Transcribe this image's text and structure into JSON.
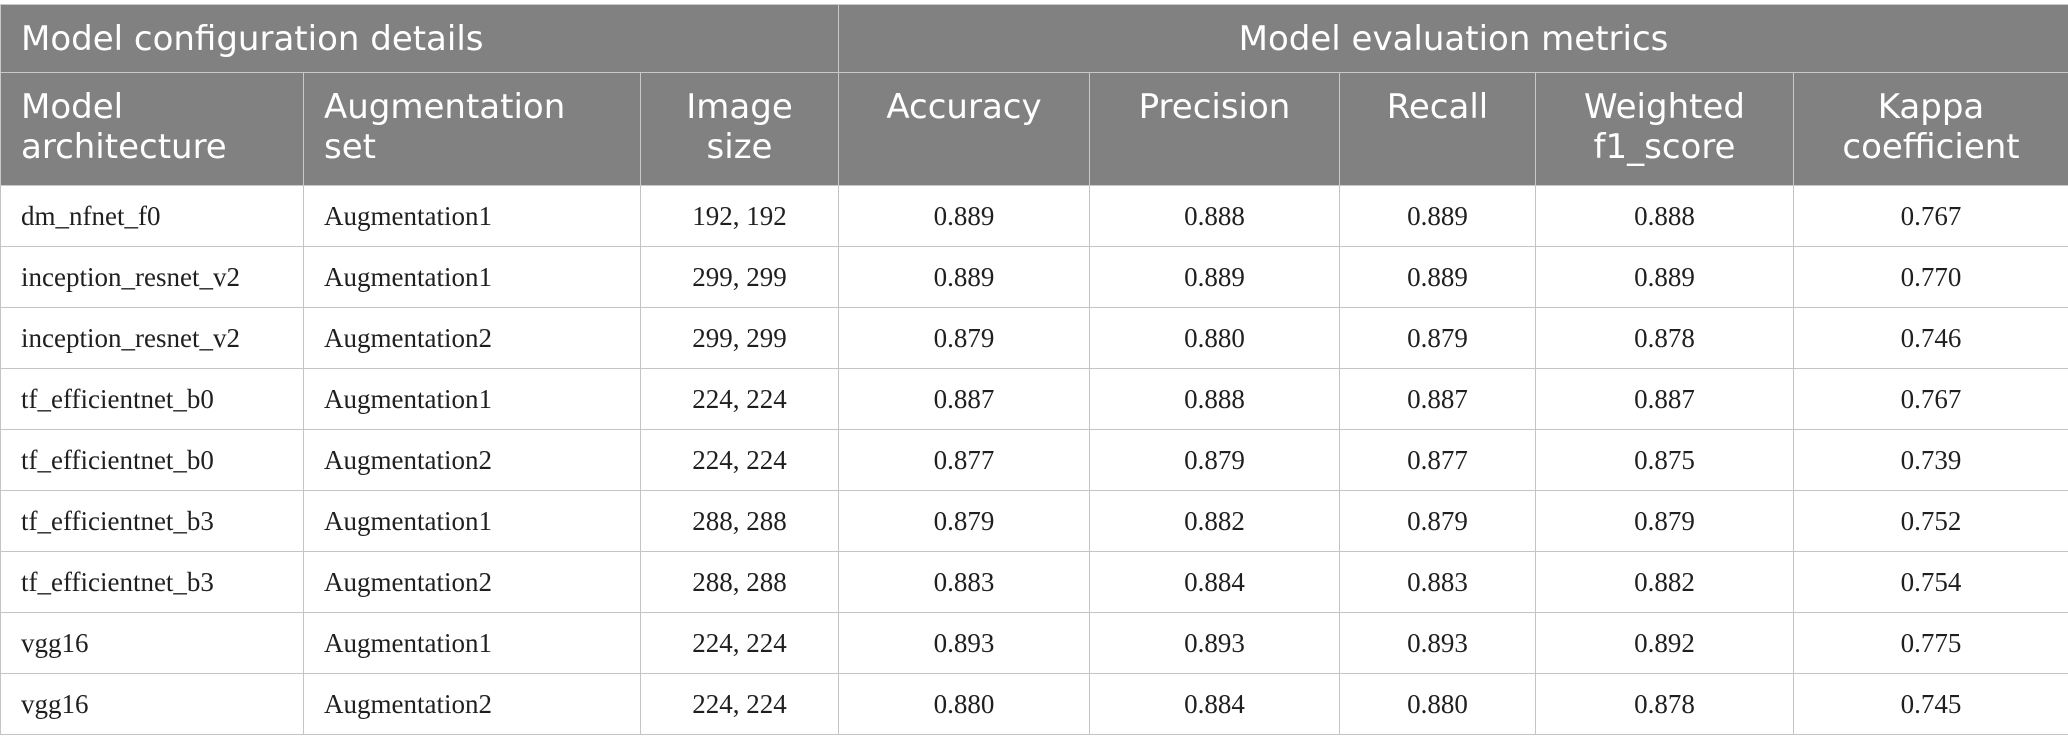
{
  "group_headers": {
    "config": "Model configuration details",
    "metrics": "Model evaluation metrics"
  },
  "columns": [
    "Model architecture",
    "Augmentation set",
    "Image size",
    "Accuracy",
    "Precision",
    "Recall",
    "Weighted f1_score",
    "Kappa coefficient"
  ],
  "column_lines": [
    [
      "Model",
      "architecture"
    ],
    [
      "Augmentation",
      "set"
    ],
    [
      "Image",
      "size"
    ],
    [
      "Accuracy",
      ""
    ],
    [
      "Precision",
      ""
    ],
    [
      "Recall",
      ""
    ],
    [
      "Weighted",
      "f1_score"
    ],
    [
      "Kappa",
      "coefficient"
    ]
  ],
  "rows": [
    [
      "dm_nfnet_f0",
      "Augmentation1",
      "192, 192",
      "0.889",
      "0.888",
      "0.889",
      "0.888",
      "0.767"
    ],
    [
      "inception_resnet_v2",
      "Augmentation1",
      "299, 299",
      "0.889",
      "0.889",
      "0.889",
      "0.889",
      "0.770"
    ],
    [
      "inception_resnet_v2",
      "Augmentation2",
      "299, 299",
      "0.879",
      "0.880",
      "0.879",
      "0.878",
      "0.746"
    ],
    [
      "tf_efficientnet_b0",
      "Augmentation1",
      "224, 224",
      "0.887",
      "0.888",
      "0.887",
      "0.887",
      "0.767"
    ],
    [
      "tf_efficientnet_b0",
      "Augmentation2",
      "224, 224",
      "0.877",
      "0.879",
      "0.877",
      "0.875",
      "0.739"
    ],
    [
      "tf_efficientnet_b3",
      "Augmentation1",
      "288, 288",
      "0.879",
      "0.882",
      "0.879",
      "0.879",
      "0.752"
    ],
    [
      "tf_efficientnet_b3",
      "Augmentation2",
      "288, 288",
      "0.883",
      "0.884",
      "0.883",
      "0.882",
      "0.754"
    ],
    [
      "vgg16",
      "Augmentation1",
      "224, 224",
      "0.893",
      "0.893",
      "0.893",
      "0.892",
      "0.775"
    ],
    [
      "vgg16",
      "Augmentation2",
      "224, 224",
      "0.880",
      "0.884",
      "0.880",
      "0.878",
      "0.745"
    ]
  ]
}
